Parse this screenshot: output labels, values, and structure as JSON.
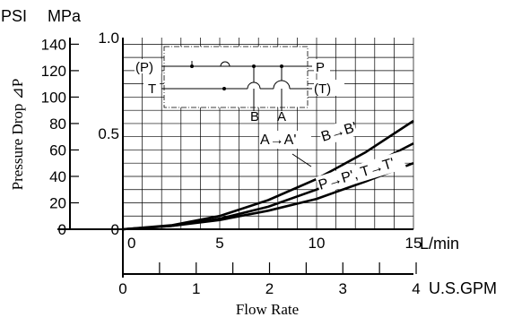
{
  "chart_data": {
    "type": "line",
    "xlabel": "Flow Rate",
    "ylabel": "Pressure Drop ⊿P",
    "x_unit_primary": "L/min",
    "x_unit_secondary": "U.S.GPM",
    "y_unit_left": "PSI",
    "y_unit_right": "MPa",
    "xlim": [
      0,
      15
    ],
    "ylim_psi": [
      0,
      145
    ],
    "grid": true,
    "x_ticks_lpm": [
      "0",
      "5",
      "10",
      "15"
    ],
    "x_ticks_gpm": [
      "0",
      "1",
      "2",
      "3",
      "4"
    ],
    "y_ticks_psi": [
      "0",
      "20",
      "40",
      "60",
      "80",
      "100",
      "120",
      "140"
    ],
    "y_ticks_mpa": [
      "0",
      "0.5",
      "1.0"
    ],
    "series": [
      {
        "name": "A→A'",
        "x": [
          0,
          2.5,
          5,
          7.5,
          10,
          12.5,
          15
        ],
        "y": [
          0,
          3,
          10,
          22,
          38,
          58,
          82
        ]
      },
      {
        "name": "B→B'",
        "x": [
          0,
          2.5,
          5,
          7.5,
          10,
          12.5,
          15
        ],
        "y": [
          0,
          2.5,
          8,
          17,
          30,
          46,
          65
        ]
      },
      {
        "name": "P→P', T→T'",
        "x": [
          0,
          2.5,
          5,
          7.5,
          10,
          12.5,
          15
        ],
        "y": [
          0,
          2.5,
          7,
          14,
          23,
          36,
          50
        ]
      }
    ],
    "inset_labels": {
      "left_top": "(P)",
      "left_bottom": "T",
      "right_top": "P",
      "right_bottom": "(T)",
      "bottom_b": "B",
      "bottom_a": "A"
    }
  }
}
